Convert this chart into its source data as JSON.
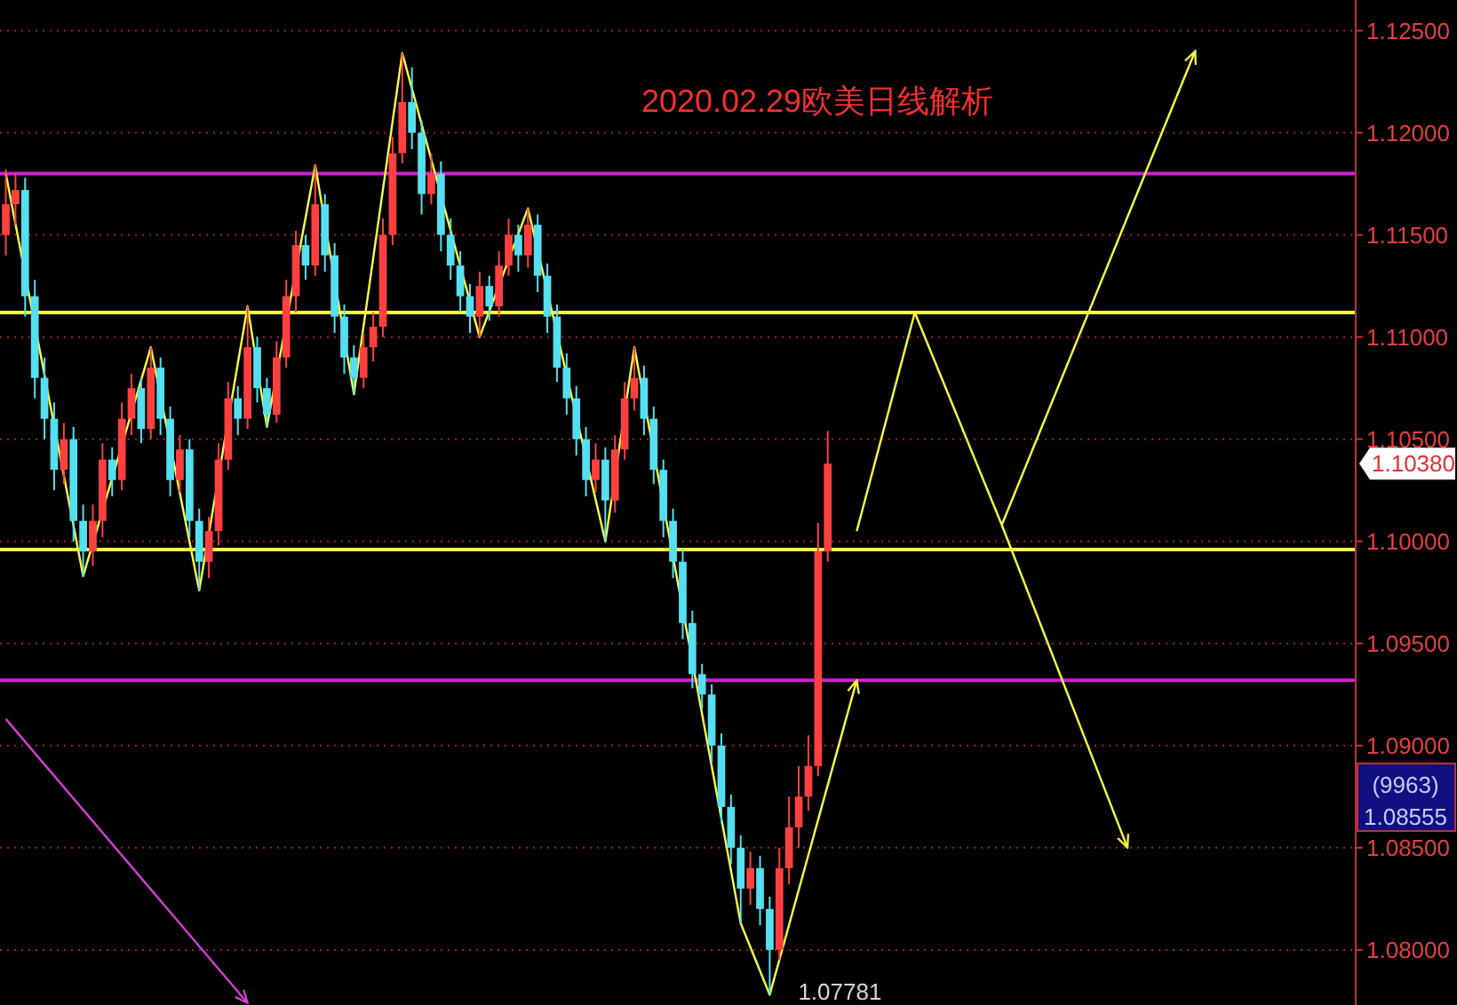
{
  "chart_data": {
    "type": "candlestick",
    "title": "2020.02.29欧美日线解析",
    "categories": [
      null,
      null,
      null,
      null,
      null,
      null,
      null,
      null,
      null,
      null,
      null,
      null,
      null,
      null,
      null,
      null,
      null,
      null,
      null,
      null,
      null,
      null,
      null,
      null,
      null,
      null,
      null,
      null,
      null,
      null,
      null,
      null,
      null,
      null,
      null,
      null,
      null,
      null,
      null,
      null,
      null,
      null,
      null,
      null,
      null,
      null,
      null,
      null,
      null,
      null,
      null,
      null,
      null,
      null,
      null,
      null,
      null,
      null,
      null,
      null,
      null,
      null,
      null,
      null,
      null,
      null,
      null,
      null,
      null,
      null,
      null,
      null,
      null,
      null,
      null,
      null,
      null,
      null,
      null,
      null,
      null,
      null,
      null,
      null,
      null,
      null,
      null,
      null,
      null,
      null,
      null,
      null,
      null,
      null,
      null,
      null,
      null,
      null,
      null,
      null,
      null,
      null,
      null,
      null,
      null,
      null,
      null,
      null,
      null,
      null,
      null,
      null,
      null,
      null,
      null,
      null,
      null,
      null,
      null,
      null,
      null,
      null,
      null,
      null,
      null,
      null,
      null,
      null,
      null,
      null,
      null,
      null,
      null,
      null,
      null,
      null,
      null,
      null,
      null,
      null
    ],
    "ohlc": [
      [
        1.115,
        1.1182,
        1.114,
        1.1165
      ],
      [
        1.1165,
        1.118,
        1.1155,
        1.1172
      ],
      [
        1.1172,
        1.1178,
        1.111,
        1.112
      ],
      [
        1.112,
        1.1128,
        1.107,
        1.108
      ],
      [
        1.108,
        1.109,
        1.105,
        1.106
      ],
      [
        1.106,
        1.1068,
        1.1025,
        1.1035
      ],
      [
        1.1035,
        1.1058,
        1.1028,
        1.105
      ],
      [
        1.105,
        1.1056,
        1.1,
        1.101
      ],
      [
        1.101,
        1.1018,
        1.0983,
        1.0995
      ],
      [
        1.0995,
        1.1018,
        1.0988,
        1.101
      ],
      [
        1.101,
        1.1048,
        1.1002,
        1.104
      ],
      [
        1.104,
        1.1046,
        1.1022,
        1.103
      ],
      [
        1.103,
        1.1068,
        1.1025,
        1.106
      ],
      [
        1.106,
        1.1082,
        1.1052,
        1.1075
      ],
      [
        1.1075,
        1.108,
        1.1048,
        1.1055
      ],
      [
        1.1055,
        1.1095,
        1.105,
        1.1085
      ],
      [
        1.1085,
        1.109,
        1.1052,
        1.106
      ],
      [
        1.106,
        1.1066,
        1.1022,
        1.103
      ],
      [
        1.103,
        1.1052,
        1.1024,
        1.1045
      ],
      [
        1.1045,
        1.105,
        1.1002,
        1.101
      ],
      [
        1.101,
        1.1016,
        1.0976,
        1.099
      ],
      [
        1.099,
        1.1012,
        1.0982,
        1.1005
      ],
      [
        1.1005,
        1.1048,
        1.0998,
        1.104
      ],
      [
        1.104,
        1.1078,
        1.1035,
        1.107
      ],
      [
        1.107,
        1.1076,
        1.1052,
        1.106
      ],
      [
        1.106,
        1.1115,
        1.1055,
        1.1095
      ],
      [
        1.1095,
        1.11,
        1.1068,
        1.1075
      ],
      [
        1.1075,
        1.108,
        1.1056,
        1.1062
      ],
      [
        1.1062,
        1.1098,
        1.1058,
        1.109
      ],
      [
        1.109,
        1.1128,
        1.1085,
        1.112
      ],
      [
        1.112,
        1.1152,
        1.1112,
        1.1145
      ],
      [
        1.1145,
        1.115,
        1.1128,
        1.1135
      ],
      [
        1.1135,
        1.1184,
        1.113,
        1.1165
      ],
      [
        1.1165,
        1.117,
        1.1132,
        1.114
      ],
      [
        1.114,
        1.1146,
        1.1102,
        1.111
      ],
      [
        1.111,
        1.1116,
        1.1082,
        1.109
      ],
      [
        1.109,
        1.1096,
        1.1072,
        1.108
      ],
      [
        1.108,
        1.1102,
        1.1075,
        1.1095
      ],
      [
        1.1095,
        1.1112,
        1.1088,
        1.1105
      ],
      [
        1.1105,
        1.1158,
        1.11,
        1.115
      ],
      [
        1.115,
        1.1198,
        1.1145,
        1.119
      ],
      [
        1.119,
        1.1239,
        1.1185,
        1.1215
      ],
      [
        1.1215,
        1.1232,
        1.1192,
        1.12
      ],
      [
        1.12,
        1.1206,
        1.116,
        1.117
      ],
      [
        1.117,
        1.119,
        1.1165,
        1.118
      ],
      [
        1.118,
        1.1186,
        1.1142,
        1.115
      ],
      [
        1.115,
        1.1158,
        1.1128,
        1.1135
      ],
      [
        1.1135,
        1.1142,
        1.1112,
        1.112
      ],
      [
        1.112,
        1.1126,
        1.1102,
        1.111
      ],
      [
        1.111,
        1.1132,
        1.11,
        1.1125
      ],
      [
        1.1125,
        1.113,
        1.1108,
        1.1115
      ],
      [
        1.1115,
        1.1142,
        1.111,
        1.1135
      ],
      [
        1.1135,
        1.1158,
        1.113,
        1.115
      ],
      [
        1.115,
        1.1155,
        1.1132,
        1.114
      ],
      [
        1.114,
        1.1163,
        1.1134,
        1.1155
      ],
      [
        1.1155,
        1.116,
        1.1122,
        1.113
      ],
      [
        1.113,
        1.1136,
        1.1102,
        1.111
      ],
      [
        1.111,
        1.1116,
        1.1078,
        1.1085
      ],
      [
        1.1085,
        1.1092,
        1.1062,
        1.107
      ],
      [
        1.107,
        1.1076,
        1.1042,
        1.105
      ],
      [
        1.105,
        1.1056,
        1.1022,
        1.103
      ],
      [
        1.103,
        1.1048,
        1.1024,
        1.104
      ],
      [
        1.104,
        1.1046,
        1.1,
        1.102
      ],
      [
        1.102,
        1.1052,
        1.1014,
        1.1045
      ],
      [
        1.1045,
        1.1078,
        1.104,
        1.107
      ],
      [
        1.107,
        1.1095,
        1.1064,
        1.108
      ],
      [
        1.108,
        1.1086,
        1.1052,
        1.106
      ],
      [
        1.106,
        1.1066,
        1.1028,
        1.1035
      ],
      [
        1.1035,
        1.104,
        1.1002,
        1.101
      ],
      [
        1.101,
        1.1016,
        1.0982,
        1.099
      ],
      [
        1.099,
        1.0996,
        1.0952,
        1.096
      ],
      [
        1.096,
        1.0966,
        1.0928,
        1.0935
      ],
      [
        1.0935,
        1.094,
        1.0918,
        1.0925
      ],
      [
        1.0925,
        1.093,
        1.0892,
        1.09
      ],
      [
        1.09,
        1.0906,
        1.0862,
        1.087
      ],
      [
        1.087,
        1.0876,
        1.0842,
        1.085
      ],
      [
        1.085,
        1.0856,
        1.0813,
        1.083
      ],
      [
        1.083,
        1.0848,
        1.0822,
        1.084
      ],
      [
        1.084,
        1.0846,
        1.0812,
        1.082
      ],
      [
        1.082,
        1.0826,
        1.0778,
        1.08
      ],
      [
        1.08,
        1.085,
        1.0795,
        1.084
      ],
      [
        1.084,
        1.0875,
        1.0832,
        1.086
      ],
      [
        1.086,
        1.089,
        1.085,
        1.0875
      ],
      [
        1.0875,
        1.0905,
        1.0868,
        1.089
      ],
      [
        1.089,
        1.1009,
        1.0885,
        1.0995
      ],
      [
        1.0995,
        1.1054,
        1.099,
        1.1038
      ],
      null,
      null,
      null,
      null,
      null,
      null,
      null,
      null,
      null,
      null,
      null,
      null,
      null,
      null,
      null,
      null,
      null,
      null,
      null,
      null,
      null,
      null,
      null,
      null,
      null,
      null,
      null,
      null,
      null,
      null,
      null,
      null,
      null,
      null,
      null,
      null,
      null,
      null,
      null,
      null,
      null,
      null,
      null,
      null,
      null,
      null,
      null,
      null,
      null,
      null,
      null,
      null,
      null,
      null
    ],
    "series": [
      {
        "type": "line",
        "color": "#ffff40",
        "values": [
          1.118,
          null,
          null,
          null,
          null,
          null,
          null,
          null,
          1.0983,
          null,
          null,
          null,
          null,
          null,
          null,
          1.1095,
          null,
          null,
          null,
          null,
          1.0976,
          null,
          null,
          null,
          null,
          1.1115,
          null,
          1.1056,
          null,
          null,
          null,
          null,
          1.1184,
          null,
          null,
          null,
          1.1072,
          null,
          null,
          null,
          null,
          1.1239,
          null,
          null,
          null,
          null,
          null,
          null,
          null,
          1.11,
          null,
          null,
          null,
          null,
          1.1163,
          null,
          null,
          null,
          null,
          null,
          null,
          null,
          1.1,
          null,
          null,
          1.1095,
          null,
          null,
          null,
          null,
          null,
          null,
          null,
          null,
          null,
          null,
          1.0813,
          null,
          null,
          1.0778,
          null,
          null,
          null,
          null,
          null,
          null,
          null,
          null,
          1.0932,
          null,
          null,
          null,
          null,
          null,
          null,
          null,
          null,
          null,
          null,
          null,
          null,
          null,
          null,
          null,
          null,
          null,
          null,
          null,
          null,
          null,
          null,
          null,
          null,
          null,
          null,
          null,
          null,
          null,
          null,
          null,
          null,
          null,
          null,
          null,
          null,
          null,
          null,
          null,
          null,
          null,
          null,
          null,
          null,
          null,
          null,
          null,
          null,
          null,
          null,
          null
        ]
      },
      {
        "type": "line",
        "color": "#ffff40",
        "values": [
          null,
          null,
          null,
          null,
          null,
          null,
          null,
          null,
          null,
          null,
          null,
          null,
          null,
          null,
          null,
          null,
          null,
          null,
          null,
          null,
          null,
          null,
          null,
          null,
          null,
          null,
          null,
          null,
          null,
          null,
          null,
          null,
          null,
          null,
          null,
          null,
          null,
          null,
          null,
          null,
          null,
          null,
          null,
          null,
          null,
          null,
          null,
          null,
          null,
          null,
          null,
          null,
          null,
          null,
          null,
          null,
          null,
          null,
          null,
          null,
          null,
          null,
          null,
          null,
          null,
          null,
          null,
          null,
          null,
          null,
          null,
          null,
          null,
          null,
          null,
          null,
          null,
          null,
          null,
          null,
          null,
          null,
          null,
          null,
          null,
          null,
          null,
          null,
          1.1005,
          null,
          null,
          null,
          null,
          null,
          1.1112,
          null,
          null,
          null,
          null,
          null,
          null,
          null,
          null,
          1.1008,
          null,
          null,
          null,
          null,
          null,
          null,
          null,
          null,
          null,
          null,
          null,
          null,
          null,
          null,
          null,
          null,
          null,
          null,
          null,
          1.124,
          null,
          null,
          null,
          null,
          null,
          null,
          null,
          null,
          null,
          null,
          null,
          null,
          null,
          null,
          null,
          null
        ]
      },
      {
        "type": "line",
        "color": "#ffff40",
        "values": [
          null,
          null,
          null,
          null,
          null,
          null,
          null,
          null,
          null,
          null,
          null,
          null,
          null,
          null,
          null,
          null,
          null,
          null,
          null,
          null,
          null,
          null,
          null,
          null,
          null,
          null,
          null,
          null,
          null,
          null,
          null,
          null,
          null,
          null,
          null,
          null,
          null,
          null,
          null,
          null,
          null,
          null,
          null,
          null,
          null,
          null,
          null,
          null,
          null,
          null,
          null,
          null,
          null,
          null,
          null,
          null,
          null,
          null,
          null,
          null,
          null,
          null,
          null,
          null,
          null,
          null,
          null,
          null,
          null,
          null,
          null,
          null,
          null,
          null,
          null,
          null,
          null,
          null,
          null,
          null,
          null,
          null,
          null,
          null,
          null,
          null,
          null,
          null,
          null,
          null,
          null,
          null,
          null,
          null,
          null,
          null,
          null,
          null,
          null,
          null,
          null,
          null,
          null,
          1.1008,
          null,
          null,
          null,
          null,
          null,
          null,
          null,
          null,
          null,
          null,
          null,
          null,
          1.085,
          null,
          null,
          null,
          null,
          null,
          null,
          null,
          null,
          null,
          null,
          null,
          null,
          null,
          null,
          null,
          null,
          null,
          null,
          null,
          null,
          null,
          null,
          null
        ]
      },
      {
        "type": "line",
        "color": "#d040d0",
        "values": [
          1.0913,
          null,
          null,
          null,
          null,
          null,
          null,
          null,
          null,
          null,
          null,
          null,
          null,
          null,
          null,
          null,
          null,
          null,
          null,
          null,
          null,
          null,
          null,
          null,
          null,
          1.0774,
          null,
          null,
          null,
          null,
          null,
          null,
          null,
          null,
          null,
          null,
          null,
          null,
          null,
          null,
          null,
          null,
          null,
          null,
          null,
          null,
          null,
          null,
          null,
          null,
          null,
          null,
          null,
          null,
          null,
          null,
          null,
          null,
          null,
          null,
          null,
          null,
          null,
          null,
          null,
          null,
          null,
          null,
          null,
          null,
          null,
          null,
          null,
          null,
          null,
          null,
          null,
          null,
          null,
          null,
          null,
          null,
          null,
          null,
          null,
          null,
          null,
          null,
          null,
          null,
          null,
          null,
          null,
          null,
          null,
          null,
          null,
          null,
          null,
          null,
          null,
          null,
          null,
          null,
          null,
          null,
          null,
          null,
          null,
          null,
          null,
          null,
          null,
          null,
          null,
          null,
          null,
          null,
          null,
          null,
          null,
          null,
          null,
          null,
          null,
          null,
          null,
          null,
          null,
          null,
          null,
          null,
          null,
          null,
          null,
          null,
          null,
          null,
          null,
          null
        ]
      }
    ],
    "ylim": [
      1.0773,
      1.1265
    ],
    "yticks": [
      {
        "value": 1.08,
        "label": "1.08000"
      },
      {
        "value": 1.085,
        "label": "1.08500"
      },
      {
        "value": 1.09,
        "label": "1.09000"
      },
      {
        "value": 1.095,
        "label": "1.09500"
      },
      {
        "value": 1.1,
        "label": "1.10000"
      },
      {
        "value": 1.105,
        "label": "1.10500"
      },
      {
        "value": 1.11,
        "label": "1.11000"
      },
      {
        "value": 1.115,
        "label": "1.11500"
      },
      {
        "value": 1.12,
        "label": "1.12000"
      },
      {
        "value": 1.125,
        "label": "1.12500"
      }
    ],
    "tick_labels": "y",
    "grid": "y",
    "ref_lines": [
      {
        "axis": "y",
        "value": 1.118,
        "color": "#d020d0"
      },
      {
        "axis": "y",
        "value": 1.1112,
        "color": "#ffff40"
      },
      {
        "axis": "y",
        "value": 1.0996,
        "color": "#ffff40"
      },
      {
        "axis": "y",
        "value": 1.0932,
        "color": "#d020d0"
      }
    ],
    "annotations": [
      "1.07781",
      "1.10380",
      "(9963)",
      "1.08555"
    ]
  }
}
